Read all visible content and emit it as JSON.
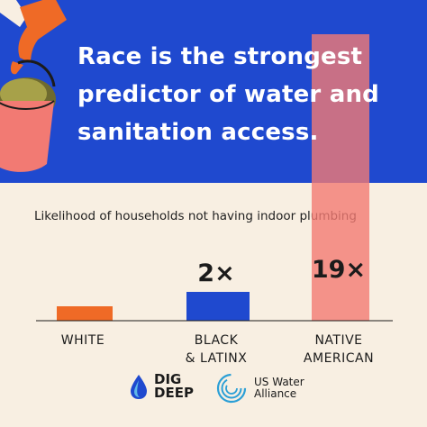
{
  "headline": {
    "line1": "Race is the strongest",
    "line2": "predictor of water and",
    "line3": "sanitation access."
  },
  "colors": {
    "blue_band": "#1f49cf",
    "background": "#f8efe2",
    "white_bar": "#ef6a26",
    "black_latinx_bar": "#1f49cf",
    "native_american_bar": "#f27a73",
    "accent_orange": "#ef6a26"
  },
  "chart_data": {
    "type": "bar",
    "title": "Likelihood of households not having indoor plumbing",
    "categories": [
      "WHITE",
      "BLACK & LATINX",
      "NATIVE AMERICAN"
    ],
    "category_lines": [
      [
        "WHITE"
      ],
      [
        "BLACK",
        "& LATINX"
      ],
      [
        "NATIVE",
        "AMERICAN"
      ]
    ],
    "values": [
      1,
      2,
      19
    ],
    "data_labels": [
      "",
      "2×",
      "19×"
    ],
    "grid": false
  },
  "logos": {
    "dig_deep_line1": "DIG",
    "dig_deep_line2": "DEEP",
    "us_water_line1": "US Water",
    "us_water_line2": "Alliance"
  }
}
